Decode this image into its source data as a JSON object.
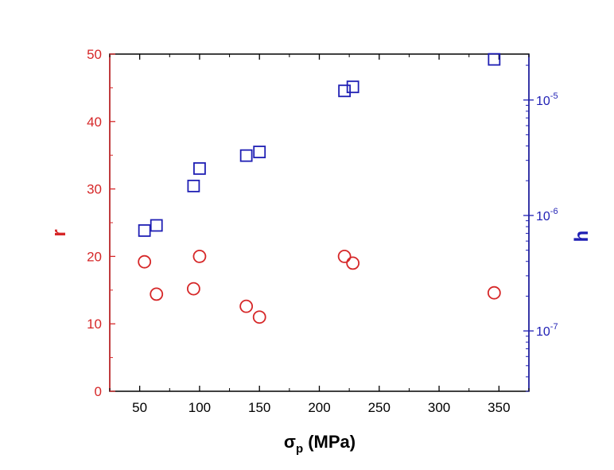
{
  "chart_data": {
    "type": "scatter",
    "title": "",
    "xlabel": "σ",
    "xlabel_sub": "p",
    "xlabel_unit": " (MPa)",
    "xlim": [
      25,
      375
    ],
    "xticks": [
      50,
      100,
      150,
      200,
      250,
      300,
      350
    ],
    "x_tick_labels": [
      "50",
      "100",
      "150",
      "200",
      "250",
      "300",
      "350"
    ],
    "left_axis": {
      "label": "r",
      "scale": "linear",
      "lim": [
        0,
        50
      ],
      "ticks": [
        0,
        10,
        20,
        30,
        40,
        50
      ],
      "tick_labels": [
        "0",
        "10",
        "20",
        "30",
        "40",
        "50"
      ],
      "color": "#d62728"
    },
    "right_axis": {
      "label": "h",
      "scale": "log",
      "lim": [
        3e-08,
        2.5e-05
      ],
      "ticks": [
        1e-07,
        1e-06,
        1e-05
      ],
      "tick_base": "10",
      "tick_exponents": [
        "-7",
        "-6",
        "-5"
      ],
      "color": "#1f1fb4"
    },
    "series": [
      {
        "name": "r",
        "axis": "left",
        "marker": "circle",
        "color": "#d62728",
        "x": [
          54,
          64,
          95,
          100,
          139,
          150,
          221,
          228,
          346
        ],
        "y": [
          19.2,
          14.4,
          15.2,
          20.0,
          12.6,
          11.0,
          20.0,
          19.0,
          14.6
        ]
      },
      {
        "name": "h",
        "axis": "right",
        "marker": "square",
        "color": "#1f1fb4",
        "x": [
          54,
          64,
          95,
          100,
          139,
          150,
          221,
          228,
          346
        ],
        "y": [
          7.4e-07,
          8.2e-07,
          1.8e-06,
          2.55e-06,
          3.3e-06,
          3.55e-06,
          1.2e-05,
          1.3e-05,
          2.25e-05
        ]
      }
    ]
  }
}
